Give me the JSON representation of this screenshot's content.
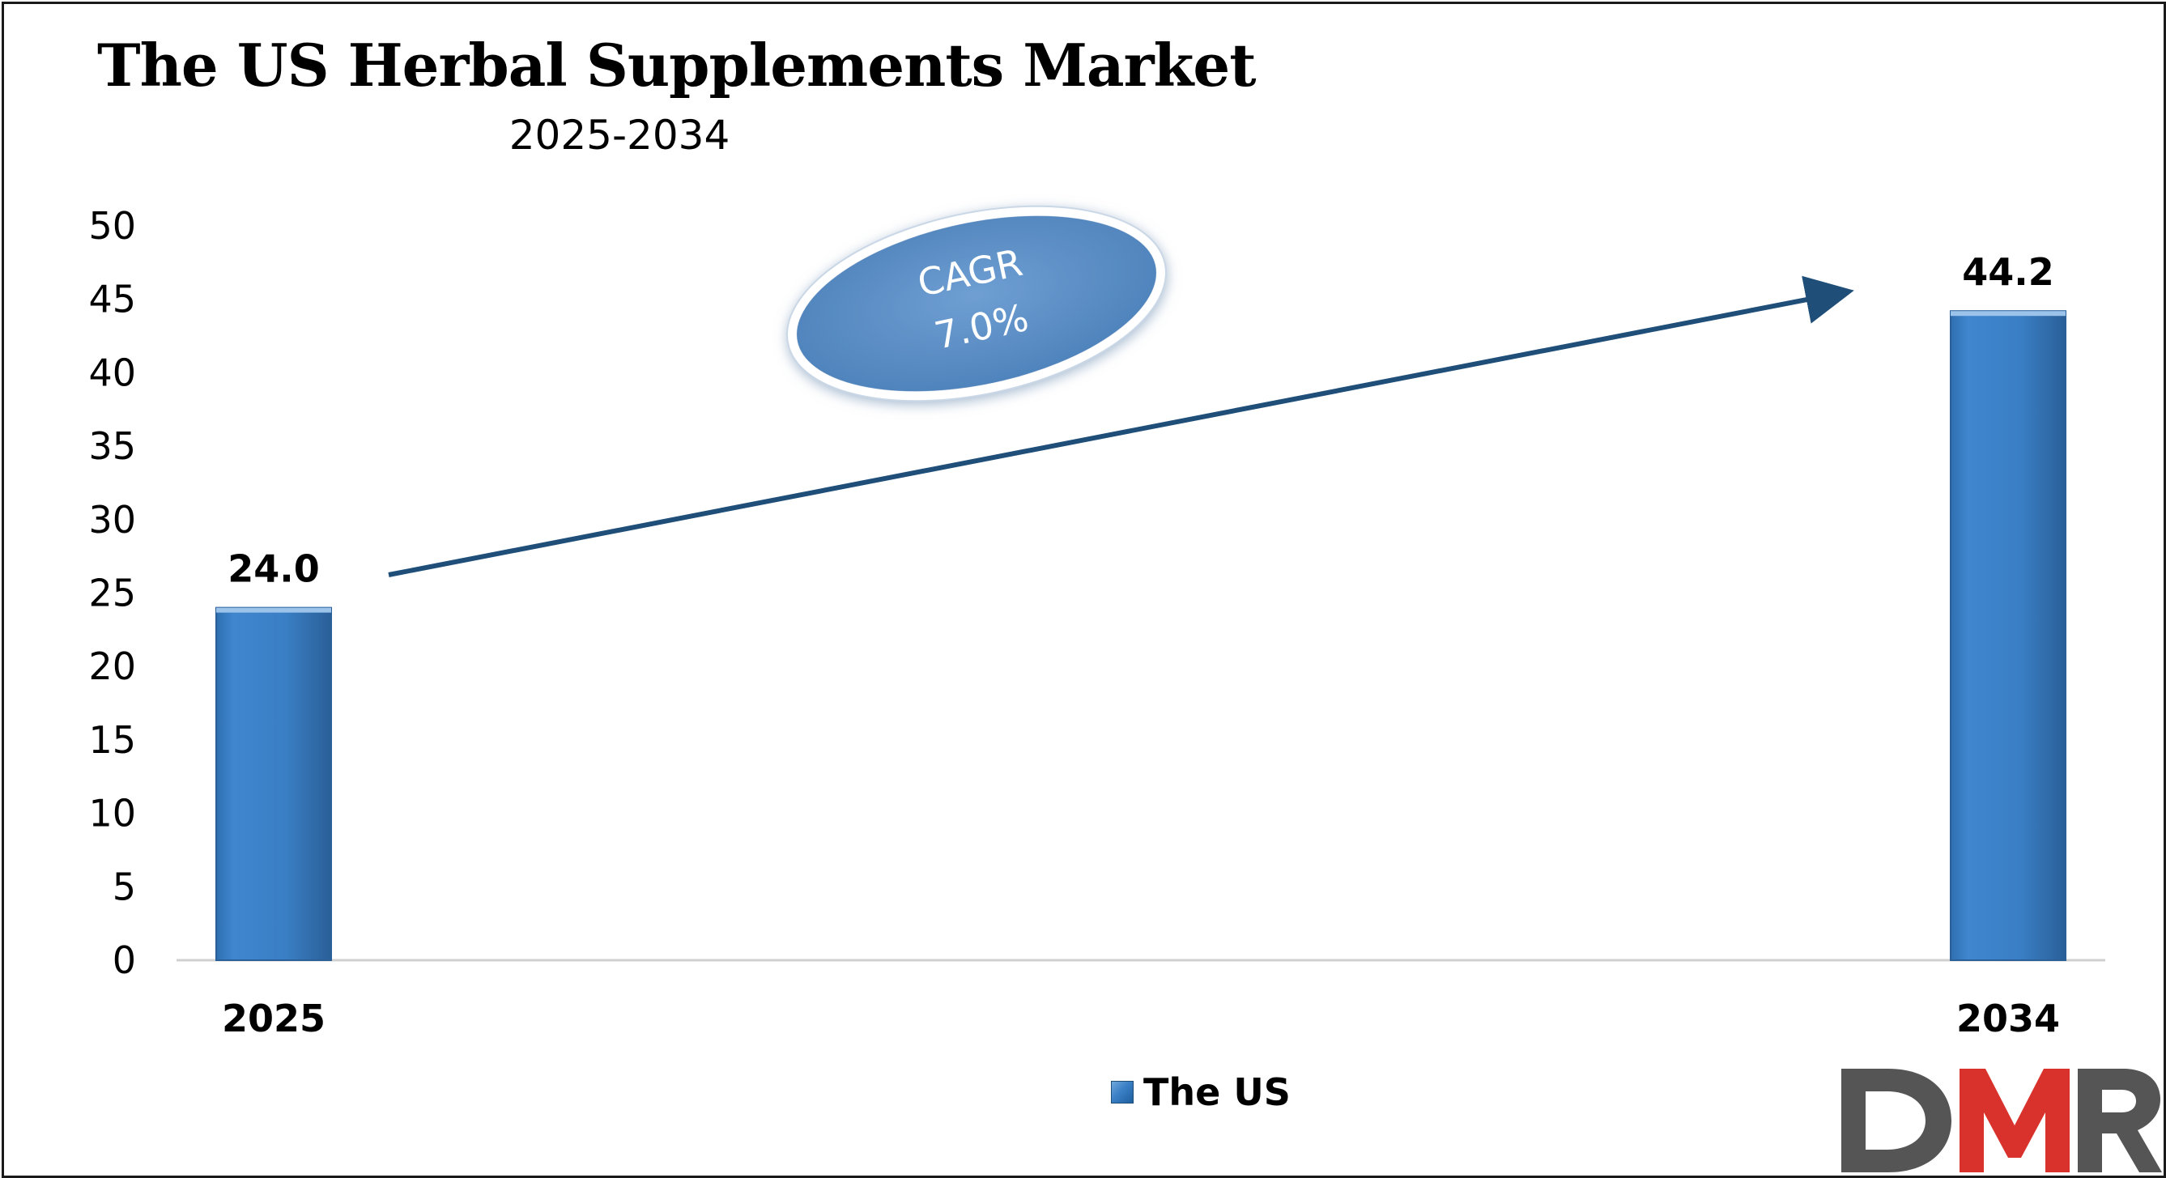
{
  "chart_data": {
    "type": "bar",
    "title": "The US Herbal Supplements Market",
    "subtitle": "2025-2034",
    "categories": [
      "2025",
      "2034"
    ],
    "series": [
      {
        "name": "The US",
        "values": [
          24.0,
          44.2
        ],
        "color": "#3a7fc5"
      }
    ],
    "data_labels": [
      "24.0",
      "44.2"
    ],
    "ylim": [
      0,
      50
    ],
    "yticks": [
      0,
      5,
      10,
      15,
      20,
      25,
      30,
      35,
      40,
      45,
      50
    ],
    "grid": false,
    "legend_position": "bottom-center",
    "annotation": {
      "line1": "CAGR",
      "line2": "7.0%",
      "fill_color": "#5b8fc7",
      "arrow_color": "#1f4e79"
    }
  },
  "logo": {
    "text": "DMR",
    "colors": [
      "#555555",
      "#d9312b",
      "#555555"
    ]
  }
}
